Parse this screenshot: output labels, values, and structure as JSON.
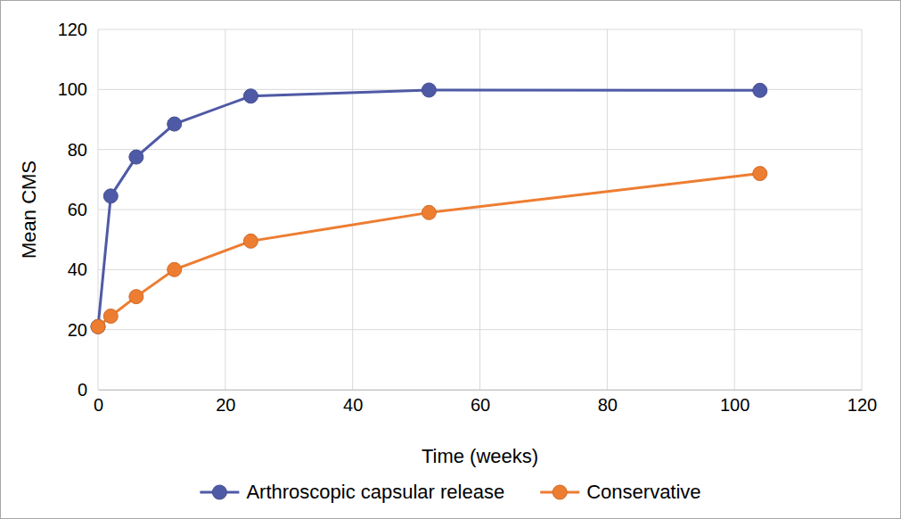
{
  "chart_data": {
    "type": "line",
    "x_label": "Time (weeks)",
    "y_label": "Mean CMS",
    "x": [
      0,
      2,
      6,
      12,
      24,
      52,
      104
    ],
    "series": [
      {
        "name": "Arthroscopic capsular release",
        "color": "#4f5aa6",
        "marker": "circle",
        "line_style": "solid",
        "values": [
          21,
          64.5,
          77.5,
          88.5,
          97.8,
          99.8,
          99.7
        ]
      },
      {
        "name": "Conservative",
        "color": "#ed7d31",
        "marker": "circle",
        "line_style": "solid",
        "values": [
          21,
          24.5,
          31,
          40,
          49.5,
          59,
          72
        ]
      }
    ],
    "xlim": [
      0,
      120
    ],
    "xticks": [
      0,
      20,
      40,
      60,
      80,
      100,
      120
    ],
    "ylim": [
      0,
      120
    ],
    "yticks": [
      0,
      20,
      40,
      60,
      80,
      100,
      120
    ],
    "grid": true,
    "legend": "bottom"
  }
}
